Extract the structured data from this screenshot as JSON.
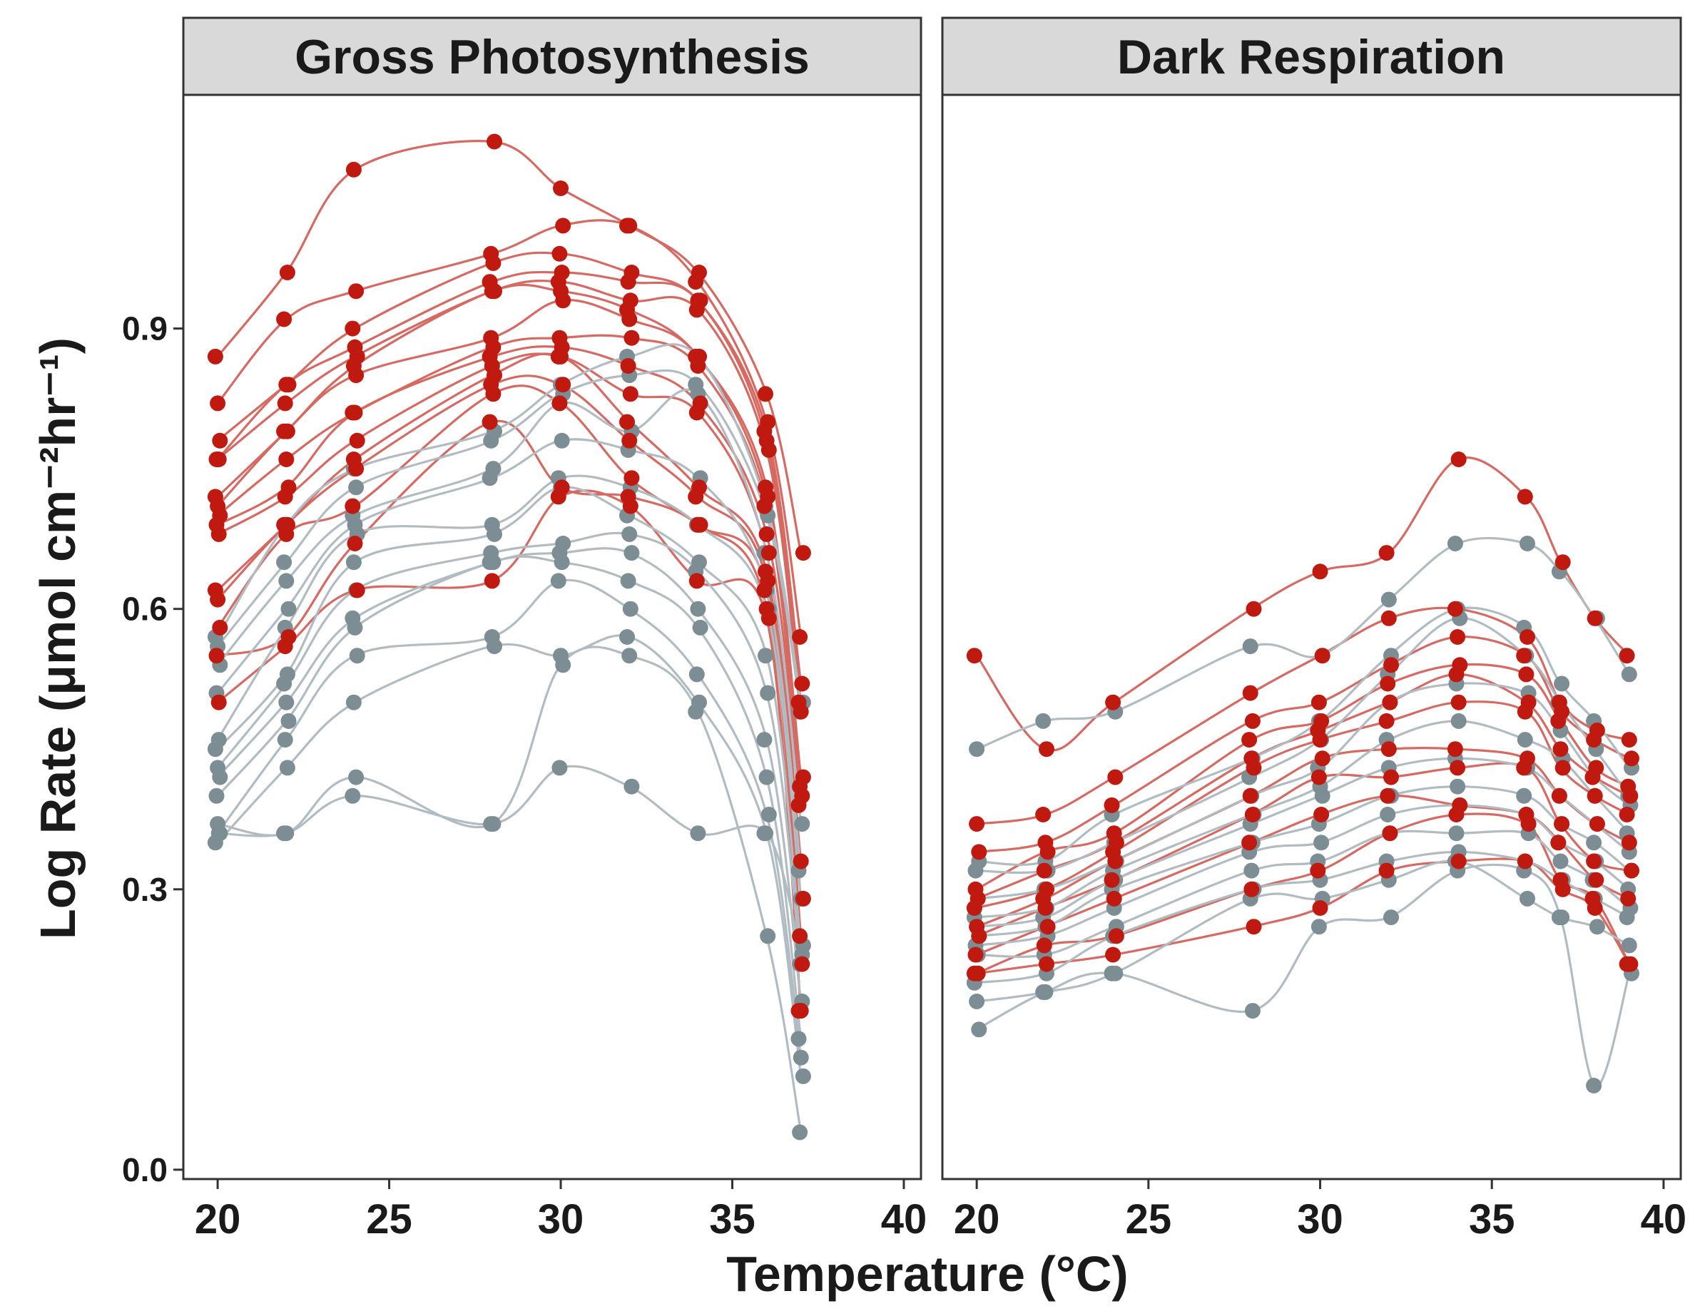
{
  "chart_data": {
    "type": "scatter",
    "xlabel_text": "Temperature (",
    "xlabel_unit": "°C)",
    "ylabel": "Log Rate (μmol cm⁻²hr⁻¹)",
    "xlim": [
      19,
      40.5
    ],
    "ylim": [
      -0.01,
      1.15
    ],
    "x_ticks": [
      20,
      25,
      30,
      35,
      40
    ],
    "y_ticks": [
      0.0,
      0.3,
      0.6,
      0.9
    ],
    "x_tick_labels": [
      "20",
      "25",
      "30",
      "35",
      "40"
    ],
    "y_tick_labels": [
      "0.0",
      "0.3",
      "0.6",
      "0.9"
    ],
    "grid": false,
    "legend": "none",
    "colors": {
      "red": "#c0190f",
      "grey": "#7d8d94",
      "red_line": "#d66a62",
      "grey_line": "#b1bcc2"
    },
    "facets": [
      {
        "title": "Gross Photosynthesis",
        "temperatures": [
          20,
          22,
          24,
          28,
          30,
          32,
          34,
          36,
          37
        ],
        "series": [
          {
            "group": "red",
            "values": [
              0.87,
              0.96,
              1.07,
              1.1,
              1.05,
              1.01,
              0.96,
              0.83,
              0.66
            ]
          },
          {
            "group": "red",
            "values": [
              0.82,
              0.91,
              0.94,
              0.98,
              1.01,
              1.01,
              0.95,
              0.8,
              0.57
            ]
          },
          {
            "group": "red",
            "values": [
              0.78,
              0.84,
              0.9,
              0.97,
              0.98,
              0.96,
              0.93,
              0.79,
              0.52
            ]
          },
          {
            "group": "red",
            "values": [
              0.76,
              0.84,
              0.88,
              0.95,
              0.96,
              0.95,
              0.93,
              0.78,
              0.5
            ]
          },
          {
            "group": "red",
            "values": [
              0.76,
              0.82,
              0.87,
              0.94,
              0.95,
              0.93,
              0.92,
              0.77,
              0.49
            ]
          },
          {
            "group": "red",
            "values": [
              0.72,
              0.79,
              0.86,
              0.94,
              0.94,
              0.92,
              0.87,
              0.73,
              0.42
            ]
          },
          {
            "group": "red",
            "values": [
              0.71,
              0.79,
              0.85,
              0.89,
              0.93,
              0.91,
              0.87,
              0.72,
              0.41
            ]
          },
          {
            "group": "red",
            "values": [
              0.7,
              0.76,
              0.81,
              0.88,
              0.89,
              0.89,
              0.86,
              0.71,
              0.4
            ]
          },
          {
            "group": "red",
            "values": [
              0.69,
              0.73,
              0.81,
              0.87,
              0.88,
              0.86,
              0.82,
              0.68,
              0.39
            ]
          },
          {
            "group": "red",
            "values": [
              0.68,
              0.72,
              0.78,
              0.86,
              0.87,
              0.83,
              0.81,
              0.66,
              0.33
            ]
          },
          {
            "group": "red",
            "values": [
              0.62,
              0.69,
              0.76,
              0.85,
              0.87,
              0.8,
              0.73,
              0.64,
              0.29
            ]
          },
          {
            "group": "red",
            "values": [
              0.61,
              0.69,
              0.75,
              0.84,
              0.84,
              0.78,
              0.72,
              0.63,
              0.25
            ]
          },
          {
            "group": "red",
            "values": [
              0.58,
              0.68,
              0.71,
              0.83,
              0.82,
              0.74,
              0.69,
              0.62,
              0.22
            ]
          },
          {
            "group": "red",
            "values": [
              0.55,
              0.57,
              0.67,
              0.8,
              0.73,
              0.72,
              0.69,
              0.6,
              0.17
            ]
          },
          {
            "group": "red",
            "values": [
              0.5,
              0.56,
              0.62,
              0.63,
              0.72,
              0.71,
              0.63,
              0.59,
              0.17
            ]
          },
          {
            "group": "grey",
            "values": [
              0.57,
              0.69,
              0.75,
              0.79,
              0.84,
              0.87,
              0.87,
              0.71,
              0.5
            ]
          },
          {
            "group": "grey",
            "values": [
              0.56,
              0.65,
              0.73,
              0.78,
              0.83,
              0.85,
              0.84,
              0.7,
              0.49
            ]
          },
          {
            "group": "grey",
            "values": [
              0.54,
              0.63,
              0.7,
              0.75,
              0.82,
              0.79,
              0.83,
              0.66,
              0.37
            ]
          },
          {
            "group": "grey",
            "values": [
              0.51,
              0.6,
              0.69,
              0.74,
              0.78,
              0.77,
              0.74,
              0.62,
              0.32
            ]
          },
          {
            "group": "grey",
            "values": [
              0.46,
              0.58,
              0.68,
              0.69,
              0.74,
              0.73,
              0.69,
              0.6,
              0.29
            ]
          },
          {
            "group": "grey",
            "values": [
              0.45,
              0.53,
              0.65,
              0.68,
              0.73,
              0.7,
              0.65,
              0.55,
              0.24
            ]
          },
          {
            "group": "grey",
            "values": [
              0.43,
              0.52,
              0.62,
              0.66,
              0.67,
              0.68,
              0.64,
              0.51,
              0.22
            ]
          },
          {
            "group": "grey",
            "values": [
              0.42,
              0.5,
              0.59,
              0.65,
              0.66,
              0.66,
              0.6,
              0.46,
              0.18
            ]
          },
          {
            "group": "grey",
            "values": [
              0.4,
              0.48,
              0.58,
              0.65,
              0.65,
              0.63,
              0.58,
              0.42,
              0.14
            ]
          },
          {
            "group": "grey",
            "values": [
              0.36,
              0.46,
              0.55,
              0.57,
              0.63,
              0.6,
              0.53,
              0.38,
              0.12
            ]
          },
          {
            "group": "grey",
            "values": [
              0.35,
              0.43,
              0.5,
              0.56,
              0.55,
              0.57,
              0.5,
              0.36,
              0.1
            ]
          },
          {
            "group": "grey",
            "values": [
              0.37,
              0.36,
              0.42,
              0.37,
              0.54,
              0.55,
              0.49,
              0.25,
              0.04
            ]
          },
          {
            "group": "grey",
            "values": [
              0.36,
              0.36,
              0.4,
              0.37,
              0.43,
              0.41,
              0.36,
              0.36,
              0.23
            ]
          }
        ]
      },
      {
        "title": "Dark Respiration",
        "temperatures": [
          20,
          22,
          24,
          28,
          30,
          32,
          34,
          36,
          37,
          38,
          39
        ],
        "series": [
          {
            "group": "red",
            "values": [
              0.55,
              0.45,
              0.5,
              0.6,
              0.64,
              0.66,
              0.76,
              0.72,
              0.65,
              0.59,
              0.55
            ]
          },
          {
            "group": "red",
            "values": [
              0.37,
              0.38,
              0.42,
              0.51,
              0.55,
              0.59,
              0.6,
              0.57,
              0.5,
              0.47,
              0.46
            ]
          },
          {
            "group": "red",
            "values": [
              0.34,
              0.35,
              0.39,
              0.48,
              0.5,
              0.54,
              0.57,
              0.55,
              0.49,
              0.46,
              0.44
            ]
          },
          {
            "group": "red",
            "values": [
              0.3,
              0.34,
              0.36,
              0.46,
              0.48,
              0.52,
              0.54,
              0.53,
              0.48,
              0.43,
              0.41
            ]
          },
          {
            "group": "red",
            "values": [
              0.29,
              0.32,
              0.35,
              0.44,
              0.47,
              0.5,
              0.53,
              0.5,
              0.45,
              0.42,
              0.4
            ]
          },
          {
            "group": "red",
            "values": [
              0.28,
              0.3,
              0.34,
              0.43,
              0.46,
              0.48,
              0.5,
              0.49,
              0.43,
              0.4,
              0.38
            ]
          },
          {
            "group": "red",
            "values": [
              0.26,
              0.29,
              0.33,
              0.4,
              0.44,
              0.45,
              0.45,
              0.44,
              0.4,
              0.37,
              0.35
            ]
          },
          {
            "group": "red",
            "values": [
              0.25,
              0.28,
              0.31,
              0.38,
              0.42,
              0.42,
              0.43,
              0.43,
              0.37,
              0.33,
              0.32
            ]
          },
          {
            "group": "red",
            "values": [
              0.23,
              0.26,
              0.29,
              0.35,
              0.38,
              0.4,
              0.39,
              0.38,
              0.35,
              0.31,
              0.29
            ]
          },
          {
            "group": "red",
            "values": [
              0.21,
              0.24,
              0.25,
              0.3,
              0.32,
              0.36,
              0.38,
              0.37,
              0.31,
              0.29,
              0.22
            ]
          },
          {
            "group": "red",
            "values": [
              0.21,
              0.22,
              0.23,
              0.26,
              0.28,
              0.32,
              0.33,
              0.33,
              0.3,
              0.28,
              0.22
            ]
          },
          {
            "group": "grey",
            "values": [
              0.45,
              0.48,
              0.49,
              0.56,
              0.55,
              0.61,
              0.67,
              0.67,
              0.64,
              0.59,
              0.53
            ]
          },
          {
            "group": "grey",
            "values": [
              0.33,
              0.33,
              0.38,
              0.44,
              0.48,
              0.55,
              0.6,
              0.58,
              0.52,
              0.48,
              0.43
            ]
          },
          {
            "group": "grey",
            "values": [
              0.32,
              0.32,
              0.35,
              0.42,
              0.46,
              0.53,
              0.59,
              0.55,
              0.5,
              0.45,
              0.4
            ]
          },
          {
            "group": "grey",
            "values": [
              0.29,
              0.3,
              0.33,
              0.4,
              0.43,
              0.5,
              0.52,
              0.51,
              0.47,
              0.42,
              0.39
            ]
          },
          {
            "group": "grey",
            "values": [
              0.27,
              0.28,
              0.32,
              0.38,
              0.41,
              0.46,
              0.48,
              0.46,
              0.44,
              0.4,
              0.36
            ]
          },
          {
            "group": "grey",
            "values": [
              0.26,
              0.27,
              0.31,
              0.37,
              0.4,
              0.43,
              0.44,
              0.43,
              0.4,
              0.37,
              0.34
            ]
          },
          {
            "group": "grey",
            "values": [
              0.25,
              0.26,
              0.3,
              0.35,
              0.37,
              0.4,
              0.41,
              0.4,
              0.37,
              0.35,
              0.32
            ]
          },
          {
            "group": "grey",
            "values": [
              0.24,
              0.25,
              0.28,
              0.34,
              0.35,
              0.38,
              0.39,
              0.38,
              0.35,
              0.33,
              0.3
            ]
          },
          {
            "group": "grey",
            "values": [
              0.23,
              0.23,
              0.26,
              0.32,
              0.33,
              0.36,
              0.36,
              0.36,
              0.33,
              0.31,
              0.28
            ]
          },
          {
            "group": "grey",
            "values": [
              0.2,
              0.21,
              0.25,
              0.3,
              0.31,
              0.33,
              0.34,
              0.33,
              0.31,
              0.29,
              0.27
            ]
          },
          {
            "group": "grey",
            "values": [
              0.18,
              0.19,
              0.21,
              0.29,
              0.29,
              0.31,
              0.33,
              0.29,
              0.27,
              0.26,
              0.24
            ]
          },
          {
            "group": "grey",
            "values": [
              0.15,
              0.19,
              0.21,
              0.17,
              0.26,
              0.27,
              0.32,
              0.32,
              0.27,
              0.09,
              0.21
            ]
          }
        ]
      }
    ]
  }
}
